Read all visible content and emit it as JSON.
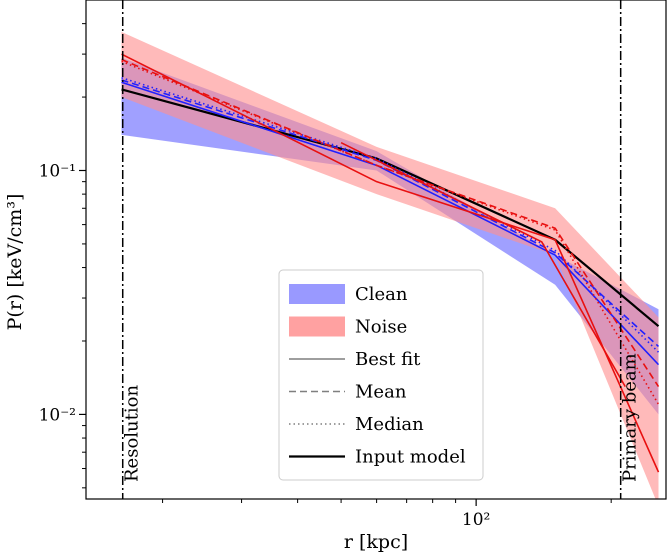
{
  "chart_data": {
    "type": "line",
    "title": "",
    "xlabel": "r [kpc]",
    "ylabel": "P(r) [keV/cm³]",
    "xscale": "log",
    "yscale": "log",
    "xlim": [
      13.5,
      265
    ],
    "ylim": [
      0.0045,
      0.5
    ],
    "xticks": [
      {
        "value": 100,
        "label": "10²"
      }
    ],
    "yticks": [
      {
        "value": 0.1,
        "label": "10⁻¹"
      },
      {
        "value": 0.01,
        "label": "10⁻²"
      }
    ],
    "vlines": [
      {
        "x": 16.3,
        "label": "Resolution"
      },
      {
        "x": 210,
        "label": "Primary beam"
      }
    ],
    "legend": {
      "placement": "lower-center",
      "entries": [
        "Clean",
        "Noise",
        "Best fit",
        "Mean",
        "Median",
        "Input model"
      ]
    },
    "bands": [
      {
        "name": "Clean",
        "color": "#8080ff",
        "x": [
          16.2,
          60,
          150,
          255
        ],
        "lower": [
          0.14,
          0.1,
          0.034,
          0.01
        ],
        "upper": [
          0.29,
          0.12,
          0.045,
          0.027
        ]
      },
      {
        "name": "Noise",
        "color": "#ff9090",
        "x": [
          16.2,
          60,
          150,
          255
        ],
        "lower": [
          0.2,
          0.08,
          0.045,
          0.0042
        ],
        "upper": [
          0.37,
          0.125,
          0.07,
          0.025
        ]
      }
    ],
    "series": [
      {
        "name": "Input model",
        "color": "#000000",
        "style": "solid",
        "width": 2.2,
        "x": [
          16.2,
          60,
          150,
          255
        ],
        "y": [
          0.215,
          0.112,
          0.052,
          0.023
        ]
      },
      {
        "name": "Best fit",
        "color": "#2020ff",
        "style": "solid",
        "width": 1.6,
        "x": [
          16.2,
          60,
          150,
          255
        ],
        "y": [
          0.23,
          0.105,
          0.045,
          0.016
        ]
      },
      {
        "name": "Mean",
        "color": "#2020ff",
        "style": "dashed",
        "width": 1.6,
        "x": [
          16.2,
          60,
          150,
          255
        ],
        "y": [
          0.235,
          0.11,
          0.046,
          0.019
        ]
      },
      {
        "name": "Median",
        "color": "#2020ff",
        "style": "dotted",
        "width": 1.6,
        "x": [
          16.2,
          60,
          150,
          255
        ],
        "y": [
          0.24,
          0.112,
          0.047,
          0.018
        ]
      },
      {
        "name": "Best fit",
        "color": "#e81010",
        "style": "solid",
        "width": 1.6,
        "x": [
          16.2,
          60,
          150,
          255
        ],
        "y": [
          0.3,
          0.09,
          0.052,
          0.0058
        ]
      },
      {
        "name": "Best fit",
        "color": "#e81010",
        "style": "solid",
        "width": 1.6,
        "x": [
          50,
          140,
          215
        ],
        "y": [
          0.13,
          0.051,
          0.013
        ]
      },
      {
        "name": "Mean",
        "color": "#e81010",
        "style": "dashed",
        "width": 1.6,
        "x": [
          16.2,
          60,
          150,
          255
        ],
        "y": [
          0.285,
          0.105,
          0.058,
          0.013
        ]
      },
      {
        "name": "Median",
        "color": "#e81010",
        "style": "dotted",
        "width": 1.6,
        "x": [
          16.2,
          60,
          150,
          255
        ],
        "y": [
          0.28,
          0.105,
          0.057,
          0.011
        ]
      }
    ]
  }
}
